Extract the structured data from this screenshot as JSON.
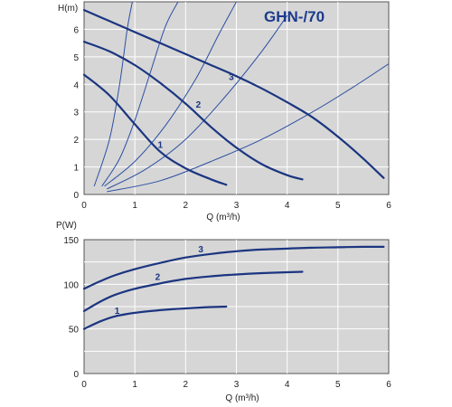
{
  "chart_data": [
    {
      "type": "line",
      "title": "GHN-/70",
      "ylabel": "H(m)",
      "xlabel": "Q (m³/h)",
      "xlim": [
        0,
        6
      ],
      "ylim": [
        0,
        7
      ],
      "xticks": [
        "0",
        "1",
        "2",
        "3",
        "4",
        "5",
        "6"
      ],
      "yticks": [
        "0",
        "1",
        "2",
        "3",
        "4",
        "5",
        "6"
      ],
      "grid": true,
      "series": [
        {
          "name": "1",
          "x": [
            0,
            0.5,
            1,
            1.5,
            2,
            2.5,
            2.8
          ],
          "y": [
            4.35,
            3.6,
            2.55,
            1.55,
            0.95,
            0.55,
            0.35
          ]
        },
        {
          "name": "2",
          "x": [
            0,
            0.5,
            1,
            1.5,
            2,
            2.5,
            3,
            3.5,
            4,
            4.3
          ],
          "y": [
            5.55,
            5.2,
            4.7,
            4.05,
            3.3,
            2.45,
            1.7,
            1.1,
            0.7,
            0.55
          ]
        },
        {
          "name": "3",
          "x": [
            0,
            0.5,
            1,
            1.5,
            2,
            2.5,
            3,
            3.5,
            4,
            4.5,
            5,
            5.5,
            5.9
          ],
          "y": [
            6.7,
            6.3,
            5.9,
            5.5,
            5.1,
            4.7,
            4.3,
            3.85,
            3.35,
            2.8,
            2.1,
            1.3,
            0.6
          ]
        }
      ],
      "system_curves": [
        {
          "x": [
            0.2,
            0.5,
            0.7,
            0.85,
            0.95
          ],
          "y": [
            0.3,
            2.0,
            4.0,
            6.0,
            7.0
          ]
        },
        {
          "x": [
            0.35,
            0.7,
            1.0,
            1.3,
            1.6,
            1.85
          ],
          "y": [
            0.3,
            1.3,
            2.7,
            4.4,
            6.1,
            7.0
          ]
        },
        {
          "x": [
            0.4,
            1.0,
            1.6,
            2.2,
            2.65,
            3.0
          ],
          "y": [
            0.3,
            1.2,
            2.5,
            4.2,
            5.8,
            7.0
          ]
        },
        {
          "x": [
            0.45,
            1.2,
            2.0,
            2.8,
            3.5,
            4.0
          ],
          "y": [
            0.2,
            0.9,
            2.0,
            3.6,
            5.2,
            6.5
          ]
        },
        {
          "x": [
            0.45,
            1.5,
            2.5,
            3.5,
            4.5,
            5.3,
            6.0
          ],
          "y": [
            0.1,
            0.5,
            1.2,
            2.0,
            3.0,
            3.9,
            4.75
          ]
        }
      ]
    },
    {
      "type": "line",
      "ylabel": "P(W)",
      "xlabel": "Q (m³/h)",
      "xlim": [
        0,
        6
      ],
      "ylim": [
        0,
        150
      ],
      "xticks": [
        "0",
        "1",
        "2",
        "3",
        "4",
        "5",
        "6"
      ],
      "yticks": [
        "0",
        "50",
        "100",
        "150"
      ],
      "grid": true,
      "series": [
        {
          "name": "1",
          "x": [
            0,
            0.3,
            0.6,
            1,
            1.5,
            2,
            2.5,
            2.8
          ],
          "y": [
            50,
            58,
            64,
            68,
            71,
            73,
            74.5,
            75
          ]
        },
        {
          "name": "2",
          "x": [
            0,
            0.3,
            0.6,
            1,
            1.5,
            2,
            2.5,
            3,
            3.5,
            4,
            4.3
          ],
          "y": [
            70,
            80,
            88,
            95,
            101,
            106,
            109,
            111,
            112.5,
            113.5,
            114
          ]
        },
        {
          "name": "3",
          "x": [
            0,
            0.3,
            0.6,
            1,
            1.5,
            2,
            2.5,
            3,
            3.5,
            4,
            4.5,
            5,
            5.5,
            5.9
          ],
          "y": [
            95,
            103,
            110,
            117,
            124,
            130,
            134,
            137,
            139,
            140,
            141,
            141.5,
            142,
            142
          ]
        }
      ]
    }
  ]
}
